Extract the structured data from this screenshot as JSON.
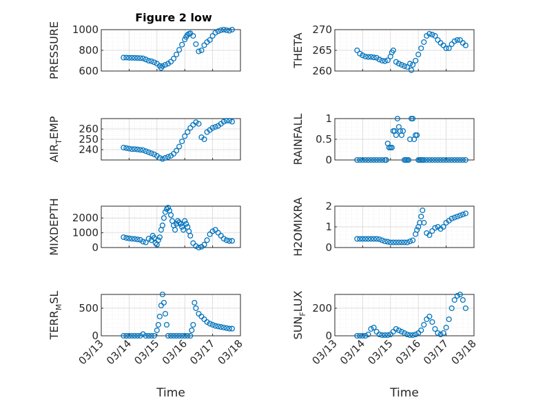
{
  "title": "Figure 2 low",
  "marker_color": "#0072BD",
  "x_ticks": [
    "03/13",
    "03/14",
    "03/15",
    "03/16",
    "03/17",
    "03/18"
  ],
  "x_label": "Time",
  "chart_data": [
    {
      "type": "scatter",
      "ylabel": {
        "main": "PRESSURE",
        "sub": "",
        "tail": ""
      },
      "ylim": [
        600,
        1000
      ],
      "yticks": [
        600,
        800,
        1000
      ],
      "x": [
        13.8,
        13.9,
        14.0,
        14.1,
        14.2,
        14.3,
        14.4,
        14.5,
        14.6,
        14.7,
        14.8,
        14.9,
        15.0,
        15.1,
        15.15,
        15.2,
        15.3,
        15.4,
        15.5,
        15.6,
        15.7,
        15.8,
        15.9,
        16.0,
        16.05,
        16.1,
        16.15,
        16.2,
        16.3,
        16.4,
        16.5,
        16.6,
        16.7,
        16.8,
        16.9,
        17.0,
        17.1,
        17.2,
        17.3,
        17.4,
        17.5,
        17.6,
        17.7
      ],
      "y": [
        730,
        730,
        728,
        728,
        727,
        726,
        725,
        722,
        712,
        700,
        695,
        685,
        672,
        650,
        630,
        648,
        660,
        672,
        690,
        720,
        760,
        805,
        855,
        905,
        930,
        950,
        960,
        965,
        940,
        860,
        790,
        800,
        850,
        880,
        900,
        940,
        970,
        985,
        995,
        1000,
        995,
        990,
        1000
      ]
    },
    {
      "type": "scatter",
      "ylabel": {
        "main": "THETA",
        "sub": "",
        "tail": ""
      },
      "ylim": [
        260,
        270
      ],
      "yticks": [
        260,
        265,
        270
      ],
      "x": [
        13.8,
        13.9,
        14.0,
        14.1,
        14.2,
        14.3,
        14.4,
        14.5,
        14.6,
        14.7,
        14.8,
        14.9,
        15.0,
        15.05,
        15.1,
        15.2,
        15.3,
        15.4,
        15.5,
        15.6,
        15.7,
        15.75,
        15.8,
        15.9,
        16.0,
        16.1,
        16.2,
        16.3,
        16.4,
        16.5,
        16.6,
        16.7,
        16.8,
        16.9,
        17.0,
        17.1,
        17.2,
        17.3,
        17.4,
        17.5,
        17.6,
        17.7
      ],
      "y": [
        265,
        264.2,
        263.8,
        263.5,
        263.4,
        263.4,
        263.3,
        263.2,
        262.8,
        262.5,
        262.4,
        262.6,
        263.5,
        264.5,
        265,
        262.2,
        261.8,
        261.5,
        261.2,
        261.0,
        261.8,
        260.2,
        261.5,
        262.5,
        264,
        265.5,
        267,
        268.5,
        269,
        268.8,
        268.5,
        267.5,
        266.8,
        266.2,
        265.5,
        265.5,
        266.5,
        267.2,
        267.5,
        267.5,
        266.8,
        266.2
      ]
    },
    {
      "type": "scatter",
      "ylabel": {
        "main": "AIR",
        "sub": "T",
        "tail": "EMP"
      },
      "ylim": [
        230,
        270
      ],
      "yticks": [
        240,
        250,
        260
      ],
      "x": [
        13.8,
        13.9,
        14.0,
        14.1,
        14.2,
        14.3,
        14.4,
        14.5,
        14.6,
        14.7,
        14.8,
        14.9,
        15.0,
        15.1,
        15.2,
        15.3,
        15.4,
        15.5,
        15.6,
        15.7,
        15.8,
        15.9,
        16.0,
        16.1,
        16.2,
        16.3,
        16.4,
        16.5,
        16.6,
        16.7,
        16.8,
        16.9,
        17.0,
        17.1,
        17.2,
        17.3,
        17.4,
        17.5,
        17.6,
        17.7
      ],
      "y": [
        242,
        241.5,
        241,
        240.5,
        240.5,
        240.2,
        239.8,
        239.5,
        238.5,
        237.5,
        236.5,
        235.5,
        234,
        232,
        231,
        232,
        233,
        234,
        236,
        239,
        243,
        248,
        253,
        257,
        261,
        264,
        266.5,
        265,
        252,
        250,
        257,
        259,
        261,
        262,
        263,
        265,
        267,
        268,
        268,
        267
      ]
    },
    {
      "type": "scatter",
      "ylabel": {
        "main": "RAINFALL",
        "sub": "",
        "tail": ""
      },
      "ylim": [
        0,
        1
      ],
      "yticks": [
        0,
        0.5,
        1
      ],
      "x": [
        13.8,
        13.9,
        14.0,
        14.1,
        14.2,
        14.3,
        14.4,
        14.5,
        14.6,
        14.7,
        14.8,
        14.85,
        14.9,
        14.95,
        15.0,
        15.05,
        15.1,
        15.15,
        15.2,
        15.25,
        15.3,
        15.35,
        15.4,
        15.45,
        15.5,
        15.55,
        15.6,
        15.65,
        15.7,
        15.75,
        15.8,
        15.85,
        15.9,
        15.95,
        16.0,
        16.05,
        16.1,
        16.15,
        16.2,
        16.3,
        16.4,
        16.5,
        16.6,
        16.7,
        16.8,
        16.9,
        17.0,
        17.1,
        17.2,
        17.3,
        17.4,
        17.5,
        17.6,
        17.7
      ],
      "y": [
        0,
        0,
        0,
        0,
        0,
        0,
        0,
        0,
        0,
        0,
        0,
        0,
        0.4,
        0.3,
        0.3,
        0.3,
        0.7,
        0.7,
        0.6,
        1.0,
        0.8,
        0.7,
        0.6,
        0.7,
        0,
        0,
        0,
        0,
        0.5,
        1.0,
        1.0,
        0.5,
        0.6,
        0.6,
        0,
        0,
        0,
        0,
        0,
        0,
        0,
        0,
        0,
        0,
        0,
        0,
        0,
        0,
        0,
        0,
        0,
        0,
        0,
        0
      ]
    },
    {
      "type": "scatter",
      "ylabel": {
        "main": "MIXDEPTH",
        "sub": "",
        "tail": ""
      },
      "ylim": [
        0,
        2800
      ],
      "yticks": [
        0,
        1000,
        2000
      ],
      "x": [
        13.8,
        13.9,
        14.0,
        14.1,
        14.2,
        14.3,
        14.4,
        14.5,
        14.6,
        14.7,
        14.8,
        14.85,
        14.9,
        14.95,
        15.0,
        15.05,
        15.1,
        15.15,
        15.2,
        15.25,
        15.3,
        15.35,
        15.4,
        15.45,
        15.5,
        15.55,
        15.6,
        15.65,
        15.7,
        15.75,
        15.8,
        15.85,
        15.9,
        15.95,
        16.0,
        16.05,
        16.1,
        16.15,
        16.2,
        16.3,
        16.4,
        16.5,
        16.6,
        16.7,
        16.8,
        16.9,
        17.0,
        17.1,
        17.2,
        17.3,
        17.4,
        17.5,
        17.6,
        17.7
      ],
      "y": [
        700,
        650,
        620,
        600,
        580,
        550,
        520,
        400,
        350,
        600,
        500,
        800,
        650,
        300,
        200,
        500,
        700,
        1200,
        1500,
        2000,
        2400,
        2600,
        2700,
        2500,
        2200,
        1800,
        1500,
        1200,
        1600,
        1800,
        1700,
        1600,
        1400,
        1200,
        1800,
        1600,
        1400,
        1100,
        800,
        300,
        100,
        0,
        50,
        200,
        500,
        900,
        1100,
        1200,
        1000,
        800,
        600,
        500,
        450,
        450
      ]
    },
    {
      "type": "scatter",
      "ylabel": {
        "main": "H2OMIXRA",
        "sub": "",
        "tail": ""
      },
      "ylim": [
        0,
        2
      ],
      "yticks": [
        0,
        1,
        2
      ],
      "x": [
        13.8,
        13.9,
        14.0,
        14.1,
        14.2,
        14.3,
        14.4,
        14.5,
        14.6,
        14.7,
        14.8,
        14.9,
        15.0,
        15.1,
        15.2,
        15.3,
        15.4,
        15.5,
        15.6,
        15.7,
        15.8,
        15.9,
        15.95,
        16.0,
        16.05,
        16.1,
        16.15,
        16.2,
        16.3,
        16.4,
        16.5,
        16.6,
        16.7,
        16.8,
        16.9,
        17.0,
        17.1,
        17.2,
        17.3,
        17.4,
        17.5,
        17.6,
        17.7
      ],
      "y": [
        0.42,
        0.42,
        0.42,
        0.42,
        0.42,
        0.42,
        0.42,
        0.42,
        0.4,
        0.35,
        0.3,
        0.28,
        0.25,
        0.25,
        0.25,
        0.25,
        0.25,
        0.25,
        0.25,
        0.3,
        0.35,
        0.65,
        0.85,
        1.0,
        1.2,
        1.5,
        1.8,
        1.2,
        0.7,
        0.6,
        0.8,
        0.95,
        1.0,
        0.9,
        1.0,
        1.2,
        1.3,
        1.4,
        1.45,
        1.5,
        1.55,
        1.6,
        1.65
      ]
    },
    {
      "type": "scatter",
      "ylabel": {
        "main": "TERR",
        "sub": "M",
        "tail": "SL"
      },
      "ylim": [
        0,
        750
      ],
      "yticks": [
        0,
        500
      ],
      "x": [
        13.8,
        13.9,
        14.0,
        14.1,
        14.2,
        14.3,
        14.4,
        14.5,
        14.6,
        14.7,
        14.8,
        14.9,
        15.0,
        15.05,
        15.1,
        15.15,
        15.2,
        15.25,
        15.3,
        15.35,
        15.4,
        15.5,
        15.6,
        15.7,
        15.8,
        15.9,
        16.0,
        16.1,
        16.2,
        16.25,
        16.3,
        16.35,
        16.4,
        16.5,
        16.6,
        16.7,
        16.8,
        16.9,
        17.0,
        17.1,
        17.2,
        17.3,
        17.4,
        17.5,
        17.6,
        17.7
      ],
      "y": [
        0,
        0,
        0,
        0,
        0,
        0,
        0,
        30,
        0,
        0,
        0,
        0,
        100,
        200,
        350,
        550,
        750,
        600,
        400,
        200,
        0,
        0,
        0,
        0,
        0,
        0,
        0,
        0,
        0,
        100,
        200,
        600,
        500,
        400,
        350,
        300,
        250,
        220,
        200,
        180,
        170,
        160,
        150,
        140,
        130,
        130
      ]
    },
    {
      "type": "scatter",
      "ylabel": {
        "main": "SUN",
        "sub": "F",
        "tail": "LUX"
      },
      "ylim": [
        0,
        300
      ],
      "yticks": [
        0,
        200
      ],
      "x": [
        13.8,
        13.9,
        14.0,
        14.1,
        14.2,
        14.3,
        14.4,
        14.5,
        14.6,
        14.7,
        14.8,
        14.9,
        15.0,
        15.1,
        15.2,
        15.3,
        15.4,
        15.5,
        15.6,
        15.7,
        15.8,
        15.9,
        16.0,
        16.1,
        16.2,
        16.3,
        16.4,
        16.5,
        16.6,
        16.7,
        16.8,
        16.9,
        17.0,
        17.1,
        17.2,
        17.3,
        17.4,
        17.5,
        17.6,
        17.7
      ],
      "y": [
        0,
        0,
        0,
        0,
        10,
        50,
        60,
        30,
        10,
        5,
        5,
        5,
        10,
        30,
        50,
        40,
        30,
        20,
        10,
        5,
        5,
        10,
        20,
        40,
        80,
        120,
        140,
        100,
        50,
        20,
        10,
        20,
        60,
        120,
        200,
        260,
        290,
        300,
        260,
        200
      ]
    }
  ]
}
